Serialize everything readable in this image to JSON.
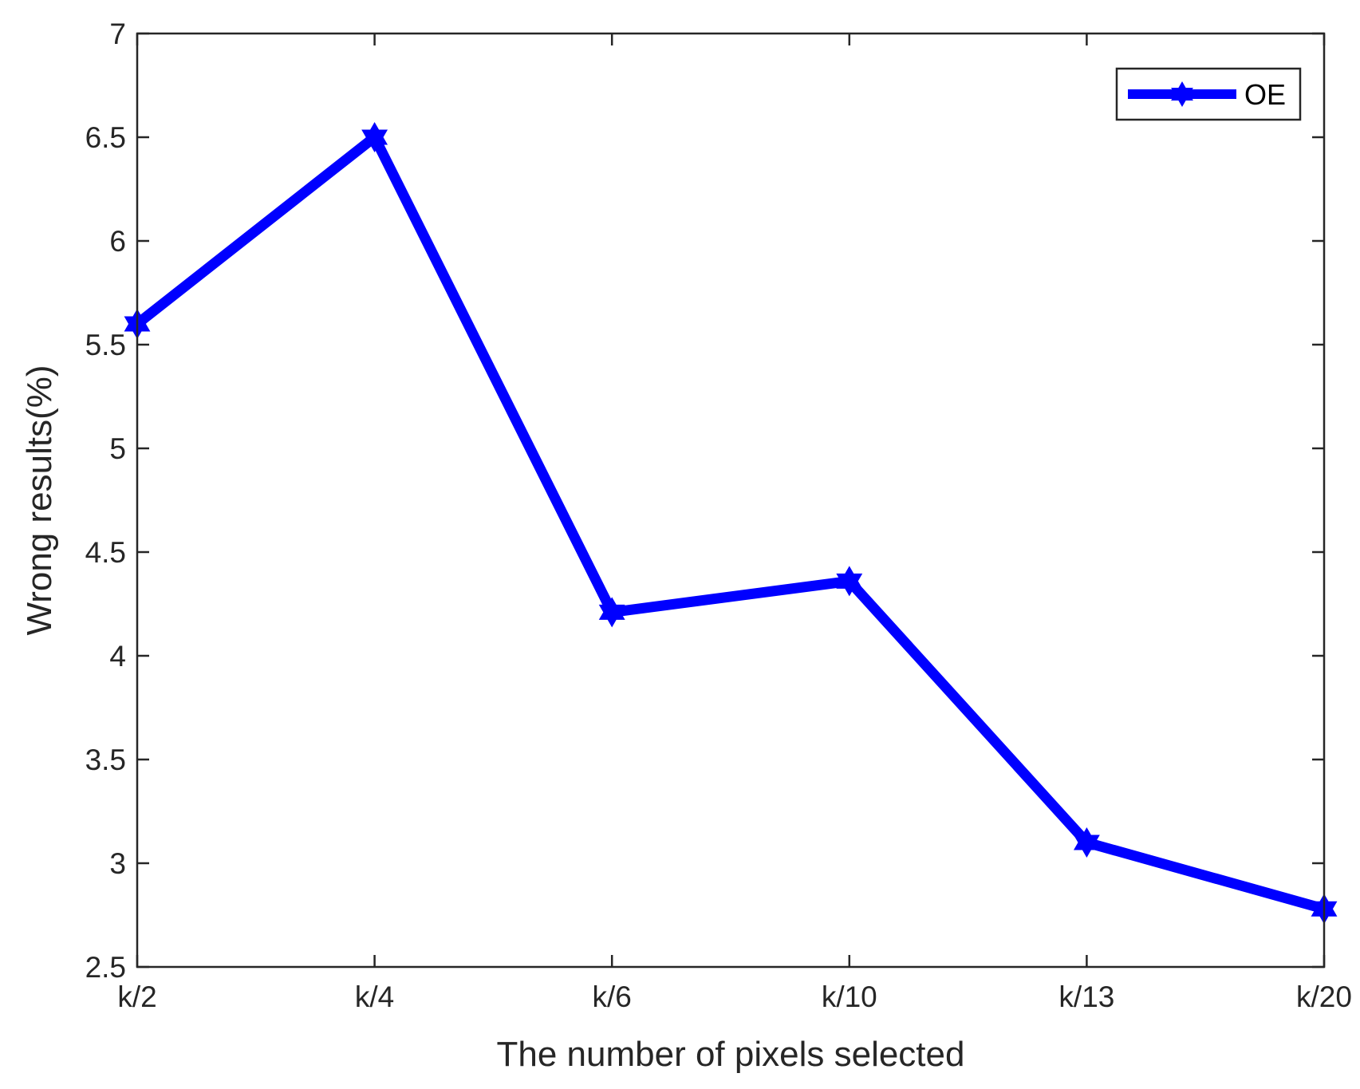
{
  "chart_data": {
    "type": "line",
    "categories": [
      "k/2",
      "k/4",
      "k/6",
      "k/10",
      "k/13",
      "k/20"
    ],
    "series": [
      {
        "name": "OE",
        "values": [
          5.6,
          6.5,
          4.21,
          4.36,
          3.1,
          2.78
        ],
        "color": "#0000ff"
      }
    ],
    "xlabel": "The number of pixels selected",
    "ylabel": "Wrong results(%)",
    "ylim": [
      2.5,
      7
    ],
    "yticks": [
      2.5,
      3,
      3.5,
      4,
      4.5,
      5,
      5.5,
      6,
      6.5,
      7
    ],
    "ytick_labels": [
      "2.5",
      "3",
      "3.5",
      "4",
      "4.5",
      "5",
      "5.5",
      "6",
      "6.5",
      "7"
    ],
    "grid": false,
    "legend": "top-right",
    "marker": "hexagram"
  }
}
